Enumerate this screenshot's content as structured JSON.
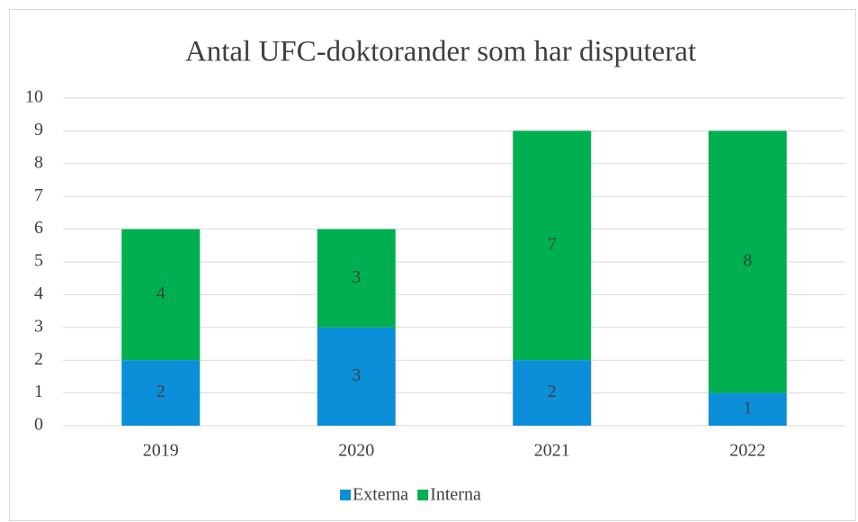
{
  "chart_data": {
    "type": "stacked_bar",
    "title": "Antal UFC-doktorander som har disputerat",
    "categories": [
      "2019",
      "2020",
      "2021",
      "2022"
    ],
    "series": [
      {
        "name": "Externa",
        "color": "#0b8fd8",
        "values": [
          2,
          3,
          2,
          1
        ]
      },
      {
        "name": "Interna",
        "color": "#00b050",
        "values": [
          4,
          3,
          7,
          8
        ]
      }
    ],
    "ylim": [
      0,
      10
    ],
    "yticks": [
      0,
      1,
      2,
      3,
      4,
      5,
      6,
      7,
      8,
      9,
      10
    ],
    "grid": true,
    "legend": "bottom"
  }
}
